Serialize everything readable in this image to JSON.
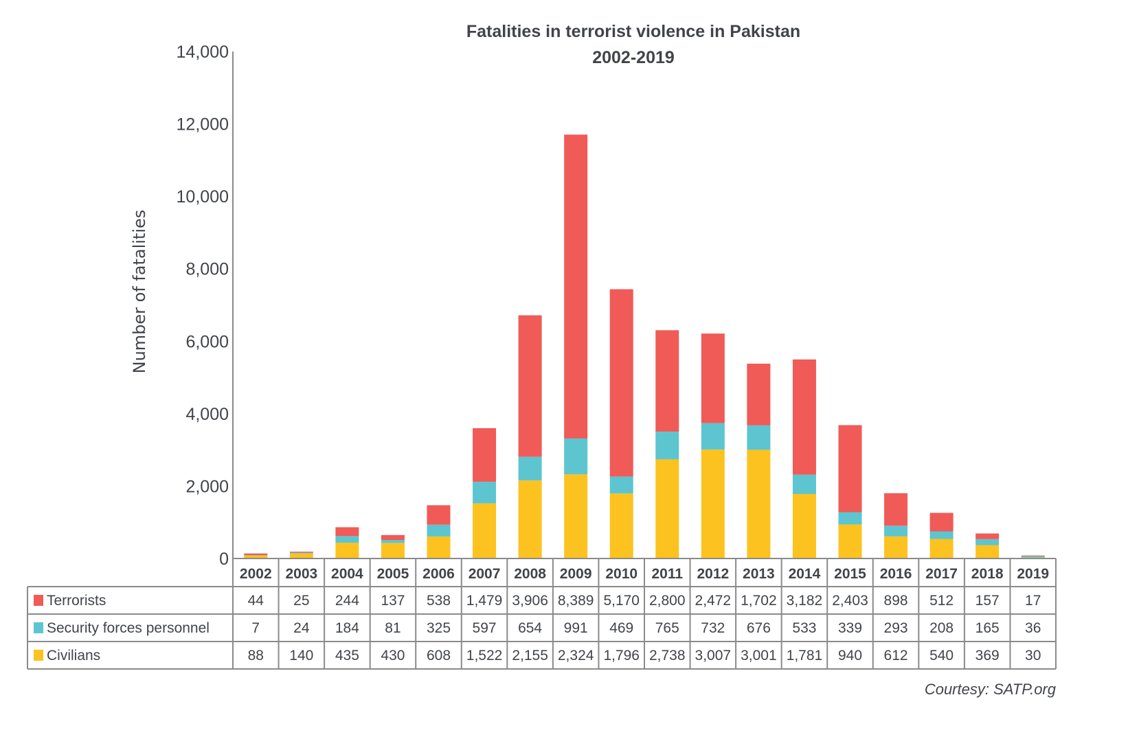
{
  "chart_data": {
    "type": "bar",
    "stacked": true,
    "title": "Fatalities in terrorist violence in Pakistan",
    "subtitle": "2002-2019",
    "xlabel": "",
    "ylabel": "Number of fatalities",
    "ylim": [
      0,
      14000
    ],
    "yticks": [
      0,
      2000,
      4000,
      6000,
      8000,
      10000,
      12000,
      14000
    ],
    "ytick_labels": [
      "0",
      "2,000",
      "4,000",
      "6,000",
      "8,000",
      "10,000",
      "12,000",
      "14,000"
    ],
    "grid": false,
    "legend": "data-table-below",
    "categories": [
      "2002",
      "2003",
      "2004",
      "2005",
      "2006",
      "2007",
      "2008",
      "2009",
      "2010",
      "2011",
      "2012",
      "2013",
      "2014",
      "2015",
      "2016",
      "2017",
      "2018",
      "2019"
    ],
    "series": [
      {
        "name": "Terrorists",
        "color": "#f05a57",
        "values": [
          44,
          25,
          244,
          137,
          538,
          1479,
          3906,
          8389,
          5170,
          2800,
          2472,
          1702,
          3182,
          2403,
          898,
          512,
          157,
          17
        ],
        "labels": [
          "44",
          "25",
          "244",
          "137",
          "538",
          "1,479",
          "3,906",
          "8,389",
          "5,170",
          "2,800",
          "2,472",
          "1,702",
          "3,182",
          "2,403",
          "898",
          "512",
          "157",
          "17"
        ]
      },
      {
        "name": "Security forces personnel",
        "color": "#5cc5d0",
        "values": [
          7,
          24,
          184,
          81,
          325,
          597,
          654,
          991,
          469,
          765,
          732,
          676,
          533,
          339,
          293,
          208,
          165,
          36
        ],
        "labels": [
          "7",
          "24",
          "184",
          "81",
          "325",
          "597",
          "654",
          "991",
          "469",
          "765",
          "732",
          "676",
          "533",
          "339",
          "293",
          "208",
          "165",
          "36"
        ]
      },
      {
        "name": "Civilians",
        "color": "#fcc21f",
        "values": [
          88,
          140,
          435,
          430,
          608,
          1522,
          2155,
          2324,
          1796,
          2738,
          3007,
          3001,
          1781,
          940,
          612,
          540,
          369,
          30
        ],
        "labels": [
          "88",
          "140",
          "435",
          "430",
          "608",
          "1,522",
          "2,155",
          "2,324",
          "1,796",
          "2,738",
          "3,007",
          "3,001",
          "1,781",
          "940",
          "612",
          "540",
          "369",
          "30"
        ]
      }
    ],
    "stack_order_bottom_to_top": [
      "Civilians",
      "Security forces personnel",
      "Terrorists"
    ],
    "credit": "Courtesy: SATP.org"
  }
}
